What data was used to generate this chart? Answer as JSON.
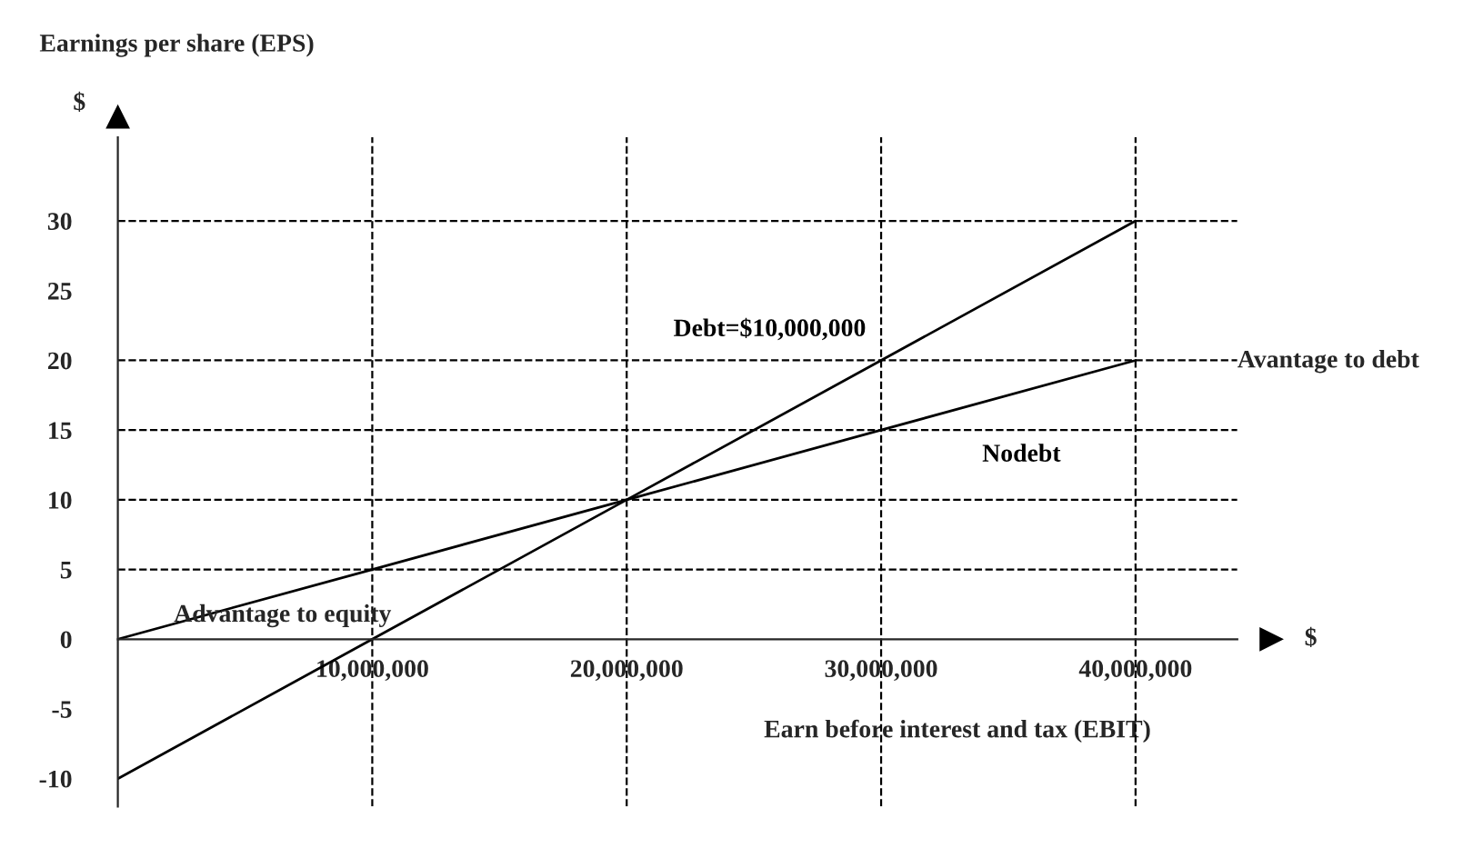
{
  "chart_data": {
    "type": "line",
    "xlabel": "Earn before interest and tax (EBIT)",
    "ylabel": "Earnings per share (EPS)",
    "x": [
      0,
      10000000,
      20000000,
      30000000,
      40000000
    ],
    "series": [
      {
        "name": "Debt=$10,000,000",
        "color": "#000000",
        "values": [
          -10,
          0,
          10,
          20,
          30
        ]
      },
      {
        "name": "Nodebt",
        "color": "#000000",
        "values": [
          0,
          5,
          10,
          15,
          20
        ]
      }
    ],
    "xlim": [
      0,
      44000000
    ],
    "ylim": [
      -12,
      36
    ],
    "xticks": [
      {
        "value": 10000000,
        "label": "10,000,000"
      },
      {
        "value": 20000000,
        "label": "20,000,000"
      },
      {
        "value": 30000000,
        "label": "30,000,000"
      },
      {
        "value": 40000000,
        "label": "40,000,000"
      }
    ],
    "yticks": [
      -10,
      -5,
      0,
      5,
      10,
      15,
      20,
      25,
      30
    ],
    "ref_lines": [
      {
        "axis": "y",
        "value": 30,
        "line_style": "dashed",
        "color": "#000000"
      },
      {
        "axis": "y",
        "value": 20,
        "line_style": "dashed",
        "color": "#000000"
      },
      {
        "axis": "y",
        "value": 15,
        "line_style": "dashed",
        "color": "#000000"
      },
      {
        "axis": "y",
        "value": 10,
        "line_style": "dashed",
        "color": "#000000"
      },
      {
        "axis": "y",
        "value": 5,
        "line_style": "dashed",
        "color": "#000000"
      },
      {
        "axis": "x",
        "value": 10000000,
        "line_style": "dashed",
        "color": "#000000"
      },
      {
        "axis": "x",
        "value": 20000000,
        "line_style": "dashed",
        "color": "#000000"
      },
      {
        "axis": "x",
        "value": 30000000,
        "line_style": "dashed",
        "color": "#000000"
      },
      {
        "axis": "x",
        "value": 40000000,
        "line_style": "dashed",
        "color": "#000000"
      }
    ],
    "annotations": [
      "Avantage to debt",
      "Advantage to equity",
      "$",
      "$"
    ],
    "marker": "none",
    "line_style": "solid",
    "grid": false,
    "legend": false
  }
}
